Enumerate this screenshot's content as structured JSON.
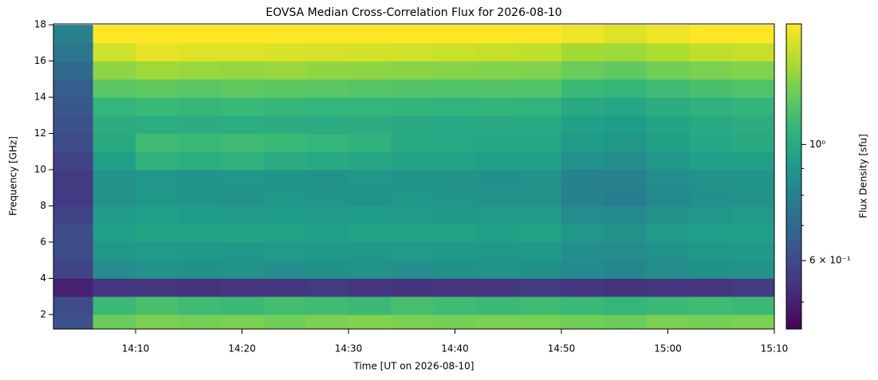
{
  "chart_data": {
    "type": "heatmap",
    "title": "EOVSA Median Cross-Correlation Flux for 2026-08-10",
    "x_label": "Time [UT on 2026-08-10]",
    "y_label": "Frequency [GHz]",
    "colorbar_label": "Flux Density [sfu]",
    "colormap": "viridis",
    "color_scale": "log",
    "x": [
      "14:04",
      "14:08",
      "14:12",
      "14:16",
      "14:20",
      "14:24",
      "14:28",
      "14:32",
      "14:36",
      "14:40",
      "14:44",
      "14:48",
      "14:52",
      "14:56",
      "15:00",
      "15:04",
      "15:08"
    ],
    "y": [
      1.5,
      2.5,
      3.5,
      4.5,
      5.5,
      6.5,
      7.5,
      8.5,
      9.5,
      10.5,
      11.5,
      12.5,
      13.5,
      14.5,
      15.5,
      16.5,
      17.5
    ],
    "z": [
      [
        0.62,
        1.25,
        1.3,
        1.28,
        1.3,
        1.27,
        1.3,
        1.32,
        1.3,
        1.28,
        1.3,
        1.29,
        1.27,
        1.25,
        1.3,
        1.28,
        1.3
      ],
      [
        0.6,
        1.1,
        1.15,
        1.12,
        1.1,
        1.13,
        1.12,
        1.1,
        1.14,
        1.12,
        1.1,
        1.12,
        1.1,
        1.08,
        1.1,
        1.12,
        1.1
      ],
      [
        0.5,
        0.55,
        0.55,
        0.54,
        0.55,
        0.55,
        0.56,
        0.55,
        0.54,
        0.55,
        0.55,
        0.56,
        0.55,
        0.54,
        0.55,
        0.55,
        0.56
      ],
      [
        0.58,
        0.85,
        0.88,
        0.87,
        0.88,
        0.86,
        0.87,
        0.88,
        0.86,
        0.87,
        0.88,
        0.87,
        0.84,
        0.83,
        0.86,
        0.87,
        0.88
      ],
      [
        0.6,
        0.9,
        0.92,
        0.91,
        0.9,
        0.92,
        0.91,
        0.9,
        0.92,
        0.91,
        0.9,
        0.91,
        0.86,
        0.85,
        0.88,
        0.9,
        0.91
      ],
      [
        0.6,
        0.95,
        0.97,
        0.96,
        0.97,
        0.96,
        0.95,
        0.96,
        0.97,
        0.96,
        0.95,
        0.96,
        0.9,
        0.88,
        0.92,
        0.94,
        0.95
      ],
      [
        0.58,
        0.92,
        0.94,
        0.93,
        0.92,
        0.93,
        0.92,
        0.93,
        0.92,
        0.91,
        0.92,
        0.92,
        0.85,
        0.84,
        0.88,
        0.9,
        0.92
      ],
      [
        0.56,
        0.88,
        0.9,
        0.89,
        0.88,
        0.9,
        0.89,
        0.88,
        0.9,
        0.89,
        0.88,
        0.88,
        0.8,
        0.79,
        0.84,
        0.87,
        0.88
      ],
      [
        0.56,
        0.88,
        0.9,
        0.89,
        0.9,
        0.89,
        0.88,
        0.9,
        0.89,
        0.88,
        0.87,
        0.88,
        0.81,
        0.8,
        0.85,
        0.88,
        0.89
      ],
      [
        0.58,
        0.95,
        1.05,
        1.03,
        1.05,
        1.02,
        1.0,
        0.98,
        0.97,
        0.96,
        0.95,
        0.95,
        0.88,
        0.86,
        0.9,
        0.94,
        0.95
      ],
      [
        0.6,
        1.0,
        1.12,
        1.1,
        1.12,
        1.1,
        1.08,
        1.05,
        1.0,
        0.99,
        0.98,
        0.98,
        0.92,
        0.9,
        0.95,
        0.98,
        1.0
      ],
      [
        0.62,
        1.02,
        1.03,
        1.02,
        1.03,
        1.02,
        1.01,
        1.02,
        1.0,
        0.99,
        1.0,
        1.0,
        0.95,
        0.93,
        0.97,
        1.0,
        1.02
      ],
      [
        0.64,
        1.08,
        1.1,
        1.09,
        1.1,
        1.09,
        1.08,
        1.08,
        1.07,
        1.06,
        1.07,
        1.06,
        1.0,
        0.98,
        1.02,
        1.05,
        1.07
      ],
      [
        0.66,
        1.2,
        1.22,
        1.2,
        1.22,
        1.21,
        1.2,
        1.19,
        1.18,
        1.17,
        1.18,
        1.17,
        1.1,
        1.08,
        1.12,
        1.15,
        1.17
      ],
      [
        0.7,
        1.35,
        1.4,
        1.38,
        1.37,
        1.38,
        1.36,
        1.35,
        1.34,
        1.33,
        1.32,
        1.31,
        1.25,
        1.22,
        1.27,
        1.3,
        1.32
      ],
      [
        0.75,
        1.55,
        1.62,
        1.6,
        1.6,
        1.58,
        1.57,
        1.56,
        1.55,
        1.53,
        1.52,
        1.5,
        1.42,
        1.4,
        1.45,
        1.5,
        1.52
      ],
      [
        0.8,
        1.7,
        1.7,
        1.7,
        1.7,
        1.7,
        1.7,
        1.7,
        1.7,
        1.7,
        1.7,
        1.7,
        1.65,
        1.6,
        1.65,
        1.7,
        1.7
      ]
    ],
    "xlim": [
      "14:02:17",
      "15:10"
    ],
    "xticks": [
      "14:10",
      "14:20",
      "14:30",
      "14:40",
      "14:50",
      "15:00",
      "15:10"
    ],
    "ylim": [
      1.2,
      18.05
    ],
    "yticks": [
      2,
      4,
      6,
      8,
      10,
      12,
      14,
      16,
      18
    ],
    "clim": [
      0.444,
      1.7
    ],
    "cticks": [
      {
        "value": 1,
        "label": "10⁰"
      },
      {
        "value": 0.6,
        "label": "6 × 10⁻¹"
      }
    ],
    "cminor_ticks": [
      0.5,
      0.7,
      0.8,
      0.9
    ]
  }
}
